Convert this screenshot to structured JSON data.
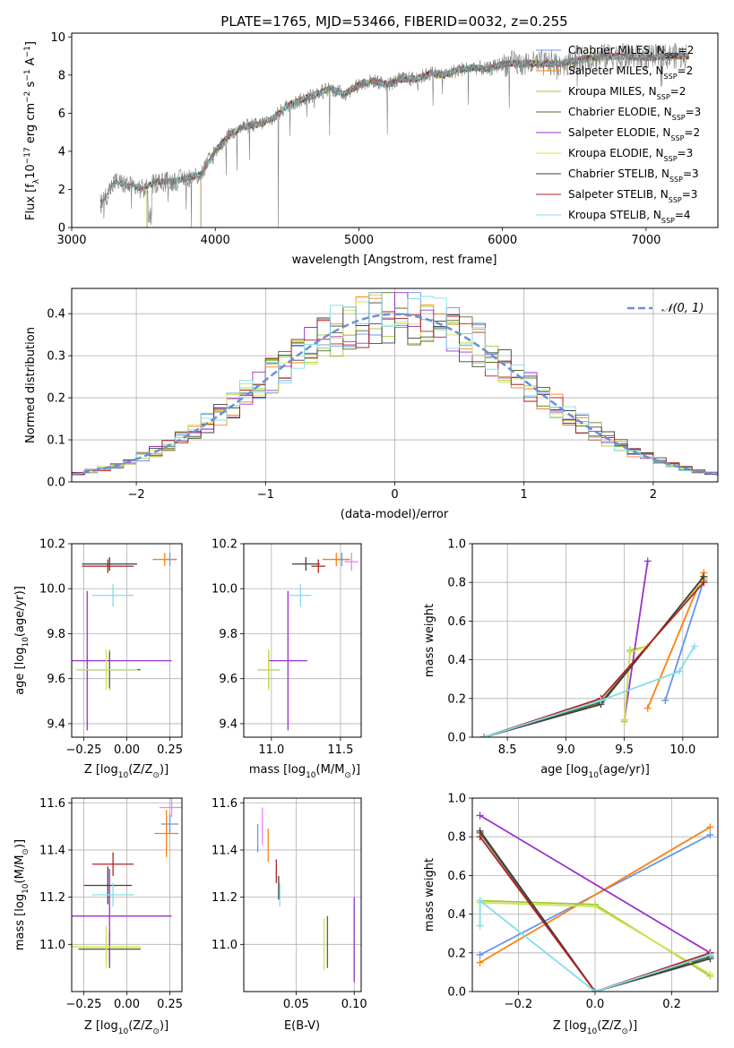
{
  "chart_data": [
    {
      "type": "line",
      "title": "PLATE=1765, MJD=53466, FIBERID=0032, z=0.255",
      "xlabel": "wavelength [Angstrom, rest frame]",
      "ylabel": "Flux [f$_\\lambda$10$^{-17}$ erg cm$^{-2}$ s$^{-1}$ A$^{-1}$]",
      "ylabel_parts": [
        "Flux [f",
        "λ",
        "10",
        "−17",
        " erg cm",
        "−2",
        " s",
        "−1",
        " A",
        "−1",
        "]"
      ],
      "xlim": [
        3000,
        7500
      ],
      "ylim": [
        0,
        10.2
      ],
      "xticks": [
        "3000",
        "4000",
        "5000",
        "6000",
        "7000"
      ],
      "yticks": [
        "0",
        "2",
        "4",
        "6",
        "8",
        "10"
      ],
      "grid": false,
      "legend_position": "right",
      "observed_spectrum": {
        "color": "#808080",
        "x": [
          3200,
          3300,
          3400,
          3500,
          3600,
          3700,
          3800,
          3900,
          4000,
          4100,
          4200,
          4300,
          4400,
          4500,
          4600,
          4700,
          4800,
          4900,
          5000,
          5100,
          5200,
          5300,
          5400,
          5500,
          5600,
          5700,
          5800,
          5900,
          6000,
          6200,
          6400,
          6600,
          6800,
          7000,
          7200
        ],
        "y": [
          1.2,
          2.4,
          2.2,
          2.0,
          2.4,
          2.4,
          2.6,
          2.8,
          4.0,
          4.9,
          5.3,
          5.4,
          5.7,
          6.4,
          6.7,
          7.0,
          7.3,
          7.0,
          7.5,
          7.7,
          7.5,
          7.8,
          7.8,
          8.1,
          8.0,
          8.3,
          8.4,
          8.3,
          8.6,
          8.6,
          8.6,
          8.9,
          9.0,
          8.9,
          9.0
        ]
      },
      "model_wavelength": [
        3200,
        3300,
        3400,
        3500,
        3600,
        3700,
        3800,
        3900,
        4000,
        4100,
        4200,
        4300,
        4400,
        4500,
        4600,
        4700,
        4800,
        4900,
        5000,
        5100,
        5200,
        5300,
        5400,
        5500,
        5600,
        5700,
        5800,
        5900,
        6000,
        6200,
        6400,
        6600,
        6800,
        7000,
        7200
      ],
      "model_flux": [
        1.2,
        2.4,
        2.2,
        2.1,
        2.4,
        2.4,
        2.6,
        2.8,
        4.0,
        4.9,
        5.3,
        5.4,
        5.7,
        6.4,
        6.7,
        7.0,
        7.3,
        7.0,
        7.5,
        7.7,
        7.5,
        7.8,
        7.8,
        8.1,
        8.0,
        8.3,
        8.4,
        8.3,
        8.6,
        8.6,
        8.6,
        8.9,
        9.0,
        8.9,
        9.0
      ],
      "series": [
        {
          "name": "Chabrier MILES, N$_{SSP}$=2",
          "label_main": "Chabrier MILES, N",
          "label_sub": "SSP",
          "label_tail": "=2",
          "color": "#6495ed",
          "start": 3525
        },
        {
          "name": "Salpeter MILES, N$_{SSP}$=2",
          "label_main": "Salpeter MILES, N",
          "label_sub": "SSP",
          "label_tail": "=2",
          "color": "#ff7f0e",
          "start": 3525
        },
        {
          "name": "Kroupa MILES, N$_{SSP}$=2",
          "label_main": "Kroupa MILES, N",
          "label_sub": "SSP",
          "label_tail": "=2",
          "color": "#9acd32",
          "start": 3525
        },
        {
          "name": "Chabrier ELODIE, N$_{SSP}$=3",
          "label_main": "Chabrier ELODIE, N",
          "label_sub": "SSP",
          "label_tail": "=3",
          "color": "#556b2f",
          "start": 3900
        },
        {
          "name": "Salpeter ELODIE, N$_{SSP}$=2",
          "label_main": "Salpeter ELODIE, N",
          "label_sub": "SSP",
          "label_tail": "=2",
          "color": "#9932cc",
          "start": 3900
        },
        {
          "name": "Kroupa ELODIE, N$_{SSP}$=3",
          "label_main": "Kroupa ELODIE, N",
          "label_sub": "SSP",
          "label_tail": "=3",
          "color": "#d4e157",
          "start": 3900
        },
        {
          "name": "Chabrier STELIB, N$_{SSP}$=3",
          "label_main": "Chabrier STELIB, N",
          "label_sub": "SSP",
          "label_tail": "=3",
          "color": "#404040",
          "start": 3200
        },
        {
          "name": "Salpeter STELIB, N$_{SSP}$=3",
          "label_main": "Salpeter STELIB, N",
          "label_sub": "SSP",
          "label_tail": "=3",
          "color": "#b22222",
          "start": 3200
        },
        {
          "name": "Kroupa STELIB, N$_{SSP}$=4",
          "label_main": "Kroupa STELIB, N",
          "label_sub": "SSP",
          "label_tail": "=4",
          "color": "#80deea",
          "start": 3200
        }
      ]
    },
    {
      "type": "line",
      "xlabel": "(data-model)/error",
      "ylabel": "Normed distribution",
      "xlim": [
        -2.5,
        2.5
      ],
      "ylim": [
        0,
        0.46
      ],
      "xticks": [
        "−2",
        "−1",
        "0",
        "1",
        "2"
      ],
      "yticks": [
        "0.0",
        "0.1",
        "0.2",
        "0.3",
        "0.4"
      ],
      "grid": true,
      "legend_position": "top-right",
      "reference": {
        "name": "$\\mathcal{N}(0,1)$",
        "label": "𝒩(0, 1)",
        "color": "#6a8fd6",
        "mu": 0,
        "sigma": 1
      },
      "bin_width": 0.1
    },
    {
      "type": "scatter",
      "xlabel": "Z [log$_{10}$(Z/Z$_\\odot$)]",
      "xlabel_parts": [
        "Z [log",
        "10",
        "(Z/Z",
        "⊙",
        ")]"
      ],
      "ylabel": "age [log$_{10}$(age/yr)]",
      "ylabel_parts": [
        "age  [log",
        "10",
        "(age/yr)]"
      ],
      "xlim": [
        -0.32,
        0.32
      ],
      "ylim": [
        9.34,
        10.2
      ],
      "xticks": [
        "−0.25",
        "0.00",
        "0.25"
      ],
      "yticks": [
        "9.4",
        "9.6",
        "9.8",
        "10.0",
        "10.2"
      ],
      "grid": true,
      "points": [
        {
          "color": "#6495ed",
          "x": 0.25,
          "xerr": 0.04,
          "y": 10.13,
          "yerr": 0.03
        },
        {
          "color": "#ff7f0e",
          "x": 0.22,
          "xerr": 0.07,
          "y": 10.13,
          "yerr": 0.03
        },
        {
          "color": "#9acd32",
          "x": -0.1,
          "xerr": 0.18,
          "y": 9.64,
          "yerr": 0.09
        },
        {
          "color": "#556b2f",
          "x": -0.1,
          "xerr": 0.18,
          "y": 9.64,
          "yerr": 0.08
        },
        {
          "color": "#9932cc",
          "x": -0.23,
          "xerr": 0.49,
          "y": 9.68,
          "yerr": 0.31
        },
        {
          "color": "#d4e157",
          "x": -0.12,
          "xerr": 0.18,
          "y": 9.64,
          "yerr": 0.09
        },
        {
          "color": "#404040",
          "x": -0.1,
          "xerr": 0.16,
          "y": 10.11,
          "yerr": 0.03
        },
        {
          "color": "#b22222",
          "x": -0.11,
          "xerr": 0.15,
          "y": 10.1,
          "yerr": 0.03
        },
        {
          "color": "#80deea",
          "x": -0.08,
          "xerr": 0.12,
          "y": 9.97,
          "yerr": 0.05
        }
      ]
    },
    {
      "type": "scatter",
      "xlabel": "mass [log$_{10}$(M/M$_\\odot$)]",
      "xlabel_parts": [
        "mass [log",
        "10",
        "(M/M",
        "⊙",
        ")]"
      ],
      "xlim": [
        10.8,
        11.65
      ],
      "ylim": [
        9.34,
        10.2
      ],
      "xticks": [
        "11.0",
        "11.5"
      ],
      "yticks": [
        "9.4",
        "9.6",
        "9.8",
        "10.0",
        "10.2"
      ],
      "grid": true,
      "points": [
        {
          "color": "#6495ed",
          "x": 11.51,
          "xerr": 0.05,
          "y": 10.13,
          "yerr": 0.03
        },
        {
          "color": "#ff7f0e",
          "x": 11.47,
          "xerr": 0.1,
          "y": 10.13,
          "yerr": 0.03
        },
        {
          "color": "#9acd32",
          "x": 10.98,
          "xerr": 0.08,
          "y": 9.64,
          "yerr": 0.09
        },
        {
          "color": "#556b2f",
          "x": 10.98,
          "xerr": 0.08,
          "y": 9.64,
          "yerr": 0.08
        },
        {
          "color": "#9932cc",
          "x": 11.12,
          "xerr": 0.14,
          "y": 9.68,
          "yerr": 0.31
        },
        {
          "color": "#d4e157",
          "x": 10.98,
          "xerr": 0.08,
          "y": 9.64,
          "yerr": 0.09
        },
        {
          "color": "#404040",
          "x": 11.25,
          "xerr": 0.1,
          "y": 10.11,
          "yerr": 0.03
        },
        {
          "color": "#b22222",
          "x": 11.34,
          "xerr": 0.05,
          "y": 10.1,
          "yerr": 0.03
        },
        {
          "color": "#80deea",
          "x": 11.21,
          "xerr": 0.08,
          "y": 9.97,
          "yerr": 0.05
        },
        {
          "color": "#ee82ee",
          "x": 11.58,
          "xerr": 0.05,
          "y": 10.12,
          "yerr": 0.04
        }
      ]
    },
    {
      "type": "line",
      "xlabel": "age [log$_{10}$(age/yr)]",
      "xlabel_parts": [
        "age  [log",
        "10",
        "(age/yr)]"
      ],
      "ylabel": "mass weight",
      "xlim": [
        8.2,
        10.3
      ],
      "ylim": [
        0,
        1.0
      ],
      "xticks": [
        "8.5",
        "9.0",
        "9.5",
        "10.0"
      ],
      "yticks": [
        "0.0",
        "0.2",
        "0.4",
        "0.6",
        "0.8",
        "1.0"
      ],
      "grid": true,
      "series": [
        {
          "color": "#6495ed",
          "x": [
            9.85,
            10.18
          ],
          "y": [
            0.19,
            0.81
          ]
        },
        {
          "color": "#ff7f0e",
          "x": [
            9.7,
            10.18
          ],
          "y": [
            0.15,
            0.85
          ]
        },
        {
          "color": "#9acd32",
          "x": [
            9.5,
            9.55,
            9.7,
            10.18
          ],
          "y": [
            0.08,
            0.45,
            0.47,
            0.82
          ]
        },
        {
          "color": "#556b2f",
          "x": [
            8.3,
            9.3,
            10.18
          ],
          "y": [
            0.0,
            0.18,
            0.82
          ]
        },
        {
          "color": "#9932cc",
          "x": [
            9.5,
            9.7
          ],
          "y": [
            0.09,
            0.91
          ]
        },
        {
          "color": "#d4e157",
          "x": [
            9.5,
            9.55,
            9.7,
            10.18
          ],
          "y": [
            0.09,
            0.44,
            0.47,
            0.82
          ]
        },
        {
          "color": "#404040",
          "x": [
            8.3,
            9.3,
            10.18
          ],
          "y": [
            0.0,
            0.17,
            0.83
          ]
        },
        {
          "color": "#b22222",
          "x": [
            8.3,
            9.3,
            10.18
          ],
          "y": [
            0.0,
            0.2,
            0.8
          ]
        },
        {
          "color": "#80deea",
          "x": [
            8.3,
            9.3,
            9.97,
            10.1
          ],
          "y": [
            0.0,
            0.19,
            0.34,
            0.47
          ]
        }
      ]
    },
    {
      "type": "scatter",
      "xlabel": "Z [log$_{10}$(Z/Z$_\\odot$)]",
      "xlabel_parts": [
        "Z [log",
        "10",
        "(Z/Z",
        "⊙",
        ")]"
      ],
      "ylabel": "mass [log$_{10}$(M/M$_\\odot$)]",
      "ylabel_parts": [
        "mass [log",
        "10",
        "(M/M",
        "⊙",
        ")]"
      ],
      "xlim": [
        -0.32,
        0.32
      ],
      "ylim": [
        10.8,
        11.62
      ],
      "xticks": [
        "−0.25",
        "0.00",
        "0.25"
      ],
      "yticks": [
        "11.0",
        "11.2",
        "11.4",
        "11.6"
      ],
      "grid": true,
      "points": [
        {
          "color": "#6495ed",
          "x": 0.25,
          "xerr": 0.05,
          "y": 11.51,
          "yerr": 0.04
        },
        {
          "color": "#ff7f0e",
          "x": 0.23,
          "xerr": 0.07,
          "y": 11.47,
          "yerr": 0.1
        },
        {
          "color": "#9acd32",
          "x": -0.1,
          "xerr": 0.18,
          "y": 10.98,
          "yerr": 0.08
        },
        {
          "color": "#556b2f",
          "x": -0.1,
          "xerr": 0.18,
          "y": 10.98,
          "yerr": 0.08
        },
        {
          "color": "#9932cc",
          "x": -0.1,
          "xerr": 0.36,
          "y": 11.12,
          "yerr": 0.2
        },
        {
          "color": "#d4e157",
          "x": -0.12,
          "xerr": 0.2,
          "y": 10.99,
          "yerr": 0.09
        },
        {
          "color": "#404040",
          "x": -0.11,
          "xerr": 0.14,
          "y": 11.25,
          "yerr": 0.08
        },
        {
          "color": "#b22222",
          "x": -0.08,
          "xerr": 0.12,
          "y": 11.34,
          "yerr": 0.05
        },
        {
          "color": "#80deea",
          "x": -0.08,
          "xerr": 0.12,
          "y": 11.21,
          "yerr": 0.05
        },
        {
          "color": "#ee82ee",
          "x": 0.26,
          "xerr": 0.07,
          "y": 11.58,
          "yerr": 0.04
        }
      ]
    },
    {
      "type": "scatter",
      "xlabel": "E(B-V)",
      "xlim": [
        0.005,
        0.106
      ],
      "ylim": [
        10.8,
        11.62
      ],
      "xticks": [
        "0.05",
        "0.10"
      ],
      "yticks": [
        "11.0",
        "11.2",
        "11.4",
        "11.6"
      ],
      "grid": true,
      "points": [
        {
          "color": "#6495ed",
          "x": 0.017,
          "y": 11.45,
          "yerr": 0.06
        },
        {
          "color": "#ee82ee",
          "x": 0.021,
          "y": 11.5,
          "yerr": 0.08
        },
        {
          "color": "#ff7f0e",
          "x": 0.026,
          "y": 11.42,
          "yerr": 0.07
        },
        {
          "color": "#b22222",
          "x": 0.033,
          "y": 11.31,
          "yerr": 0.05
        },
        {
          "color": "#404040",
          "x": 0.035,
          "y": 11.24,
          "yerr": 0.05
        },
        {
          "color": "#80deea",
          "x": 0.036,
          "y": 11.21,
          "yerr": 0.05
        },
        {
          "color": "#d4e157",
          "x": 0.074,
          "y": 11.0,
          "yerr": 0.11
        },
        {
          "color": "#556b2f",
          "x": 0.077,
          "y": 11.01,
          "yerr": 0.11
        },
        {
          "color": "#9932cc",
          "x": 0.1,
          "y": 11.02,
          "yerr": 0.18
        }
      ]
    },
    {
      "type": "line",
      "xlabel": "Z [log$_{10}$(Z/Z$_\\odot$)]",
      "xlabel_parts": [
        "Z [log",
        "10",
        "(Z/Z",
        "⊙",
        ")]"
      ],
      "ylabel": "mass weight",
      "xlim": [
        -0.32,
        0.32
      ],
      "ylim": [
        0,
        1.0
      ],
      "xticks": [
        "−0.2",
        "0.0",
        "0.2"
      ],
      "yticks": [
        "0.0",
        "0.2",
        "0.4",
        "0.6",
        "0.8",
        "1.0"
      ],
      "grid": true,
      "series": [
        {
          "color": "#6495ed",
          "x": [
            -0.3,
            0.3
          ],
          "y": [
            0.19,
            0.81
          ]
        },
        {
          "color": "#ff7f0e",
          "x": [
            -0.3,
            0.3
          ],
          "y": [
            0.15,
            0.85
          ]
        },
        {
          "color": "#9acd32",
          "x": [
            -0.3,
            0.0,
            0.3
          ],
          "y": [
            0.47,
            0.45,
            0.08
          ]
        },
        {
          "color": "#556b2f",
          "x": [
            -0.3,
            0.0,
            0.3
          ],
          "y": [
            0.82,
            0.0,
            0.18
          ]
        },
        {
          "color": "#9932cc",
          "x": [
            -0.3,
            0.3
          ],
          "y": [
            0.91,
            0.2
          ]
        },
        {
          "color": "#d4e157",
          "x": [
            -0.3,
            0.0,
            0.3
          ],
          "y": [
            0.46,
            0.44,
            0.09
          ]
        },
        {
          "color": "#404040",
          "x": [
            -0.3,
            0.0,
            0.3
          ],
          "y": [
            0.83,
            0.0,
            0.17
          ]
        },
        {
          "color": "#b22222",
          "x": [
            -0.3,
            0.0,
            0.3
          ],
          "y": [
            0.8,
            0.0,
            0.2
          ]
        },
        {
          "color": "#80deea",
          "x": [
            -0.3,
            -0.3,
            0.0,
            0.3
          ],
          "y": [
            0.34,
            0.47,
            0.0,
            0.19
          ]
        }
      ]
    }
  ]
}
